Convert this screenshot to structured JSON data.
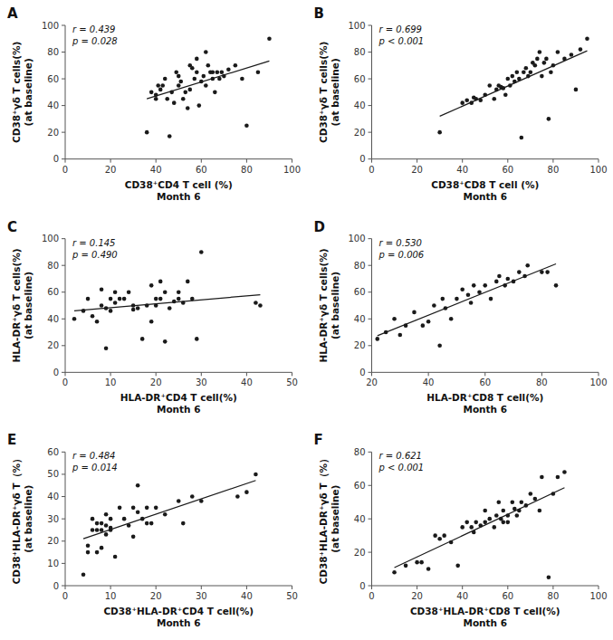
{
  "chart_data": [
    {
      "type": "scatter",
      "title": "A",
      "x_label": "CD38⁺CD4 T cell (%)\nMonth 6",
      "y_label": "CD38⁺γδ T cells(%)\n(at baseline)",
      "annotations": [
        "r = 0.439",
        "p = 0.028"
      ],
      "color": "#1a1a1a",
      "xlim": [
        0,
        100
      ],
      "ylim": [
        0,
        100
      ],
      "xticks": [
        0,
        20,
        40,
        60,
        80,
        100
      ],
      "yticks": [
        0,
        20,
        40,
        60,
        80,
        100
      ],
      "x": [
        36,
        38,
        40,
        40,
        41,
        42,
        43,
        44,
        45,
        46,
        47,
        48,
        49,
        50,
        50,
        51,
        52,
        53,
        54,
        55,
        55,
        56,
        57,
        58,
        58,
        59,
        60,
        61,
        62,
        62,
        63,
        64,
        65,
        65,
        66,
        67,
        68,
        69,
        70,
        72,
        75,
        78,
        80,
        85,
        90
      ],
      "values": [
        20,
        50,
        48,
        45,
        55,
        52,
        55,
        60,
        45,
        17,
        50,
        42,
        65,
        55,
        62,
        58,
        45,
        50,
        38,
        70,
        52,
        68,
        60,
        65,
        75,
        40,
        58,
        62,
        55,
        80,
        70,
        65,
        60,
        65,
        50,
        65,
        60,
        65,
        62,
        67,
        70,
        60,
        25,
        65,
        90
      ],
      "fit": {
        "x": [
          36,
          90
        ],
        "values": [
          45.103,
          73.321
        ]
      }
    },
    {
      "type": "scatter",
      "title": "B",
      "x_label": "CD38⁺CD8 T cell (%)\nMonth 6",
      "y_label": "CD38⁺γδ T cells(%)\n(at baseline)",
      "annotations": [
        "r = 0.699",
        "p < 0.001"
      ],
      "color": "#1a1a1a",
      "xlim": [
        0,
        100
      ],
      "ylim": [
        0,
        100
      ],
      "xticks": [
        0,
        20,
        40,
        60,
        80,
        100
      ],
      "yticks": [
        0,
        20,
        40,
        60,
        80,
        100
      ],
      "x": [
        30,
        40,
        42,
        44,
        45,
        46,
        48,
        50,
        52,
        54,
        55,
        56,
        57,
        58,
        59,
        60,
        61,
        62,
        63,
        64,
        65,
        66,
        67,
        68,
        69,
        70,
        71,
        72,
        73,
        74,
        75,
        76,
        77,
        78,
        79,
        80,
        82,
        85,
        88,
        90,
        92,
        95
      ],
      "values": [
        20,
        42,
        44,
        42,
        46,
        45,
        44,
        48,
        55,
        45,
        52,
        55,
        54,
        53,
        48,
        60,
        55,
        62,
        58,
        65,
        60,
        16,
        65,
        68,
        62,
        65,
        72,
        70,
        75,
        80,
        62,
        72,
        75,
        30,
        65,
        70,
        80,
        75,
        78,
        52,
        82,
        90
      ],
      "fit": {
        "x": [
          30,
          95
        ],
        "values": [
          32.008,
          80.941
        ]
      }
    },
    {
      "type": "scatter",
      "title": "C",
      "x_label": "HLA-DR⁺CD4 T cell(%)\nMonth 6",
      "y_label": "HLA-DR⁺γδ T cells(%)\n(at baseline)",
      "annotations": [
        "r = 0.145",
        "p = 0.490"
      ],
      "color": "#1a1a1a",
      "xlim": [
        0,
        50
      ],
      "ylim": [
        0,
        100
      ],
      "xticks": [
        0,
        10,
        20,
        30,
        40,
        50
      ],
      "yticks": [
        0,
        20,
        40,
        60,
        80,
        100
      ],
      "x": [
        2,
        4,
        5,
        6,
        7,
        8,
        8,
        9,
        9,
        10,
        10,
        11,
        11,
        12,
        13,
        14,
        15,
        15,
        16,
        17,
        18,
        19,
        19,
        20,
        20,
        21,
        21,
        22,
        22,
        23,
        24,
        25,
        25,
        26,
        27,
        28,
        29,
        30,
        42,
        43
      ],
      "values": [
        40,
        46,
        55,
        42,
        38,
        50,
        62,
        48,
        18,
        55,
        46,
        60,
        52,
        55,
        55,
        60,
        47,
        50,
        48,
        25,
        50,
        38,
        65,
        55,
        50,
        68,
        55,
        60,
        23,
        48,
        53,
        55,
        60,
        52,
        68,
        55,
        25,
        90,
        52,
        50
      ],
      "fit": {
        "x": [
          2,
          43
        ],
        "values": [
          45.983,
          58.079
        ]
      }
    },
    {
      "type": "scatter",
      "title": "D",
      "x_label": "HLA-DR⁺CD8 T cell(%)\nMonth 6",
      "y_label": "HLA-DR⁺γδ T cells(%)\n(at baseline)",
      "annotations": [
        "r = 0.530",
        "p = 0.006"
      ],
      "color": "#1a1a1a",
      "xlim": [
        20,
        100
      ],
      "ylim": [
        0,
        100
      ],
      "xticks": [
        20,
        40,
        60,
        80,
        100
      ],
      "yticks": [
        0,
        20,
        40,
        60,
        80,
        100
      ],
      "x": [
        22,
        25,
        28,
        30,
        32,
        35,
        38,
        40,
        42,
        44,
        45,
        46,
        48,
        50,
        52,
        54,
        55,
        56,
        58,
        60,
        62,
        64,
        65,
        67,
        68,
        70,
        72,
        74,
        75,
        80,
        82,
        85
      ],
      "values": [
        25,
        30,
        40,
        28,
        35,
        45,
        35,
        38,
        50,
        20,
        55,
        48,
        40,
        55,
        62,
        58,
        52,
        65,
        60,
        65,
        55,
        68,
        72,
        65,
        70,
        68,
        75,
        72,
        80,
        75,
        75,
        65
      ],
      "fit": {
        "x": [
          22,
          85
        ],
        "values": [
          27.361,
          81.124
        ]
      }
    },
    {
      "type": "scatter",
      "title": "E",
      "x_label": "CD38⁺HLA-DR⁺CD4 T cell(%)\nMonth 6",
      "y_label": "CD38⁺HLA-DR⁺γδ T（%）\n(at baseline)",
      "annotations": [
        "r = 0.484",
        "p = 0.014"
      ],
      "color": "#1a1a1a",
      "xlim": [
        0,
        50
      ],
      "ylim": [
        0,
        60
      ],
      "xticks": [
        0,
        10,
        20,
        30,
        40,
        50
      ],
      "yticks": [
        0,
        10,
        20,
        30,
        40,
        50,
        60
      ],
      "x": [
        4,
        5,
        5,
        6,
        6,
        7,
        7,
        7,
        8,
        8,
        8,
        9,
        9,
        9,
        10,
        10,
        10,
        11,
        12,
        13,
        14,
        15,
        15,
        16,
        16,
        17,
        18,
        18,
        19,
        20,
        22,
        25,
        26,
        28,
        30,
        38,
        40,
        42
      ],
      "values": [
        5,
        18,
        15,
        25,
        30,
        25,
        28,
        15,
        28,
        25,
        17,
        32,
        27,
        23,
        26,
        30,
        25,
        13,
        35,
        30,
        27,
        35,
        22,
        45,
        33,
        30,
        35,
        28,
        28,
        35,
        32,
        38,
        28,
        40,
        38,
        40,
        42,
        50
      ],
      "fit": {
        "x": [
          4,
          42
        ],
        "values": [
          21.094,
          47.23
        ]
      }
    },
    {
      "type": "scatter",
      "title": "F",
      "x_label": "CD38⁺HLA-DR⁺CD8 T cell(%)\nMonth 6",
      "y_label": "CD38⁺HLA-DR⁺γδ T（%）\n(at baseline)",
      "annotations": [
        "r = 0.621",
        "p < 0.001"
      ],
      "color": "#1a1a1a",
      "xlim": [
        0,
        100
      ],
      "ylim": [
        0,
        80
      ],
      "xticks": [
        0,
        20,
        40,
        60,
        80,
        100
      ],
      "yticks": [
        0,
        20,
        40,
        60,
        80
      ],
      "x": [
        10,
        15,
        20,
        22,
        25,
        28,
        30,
        32,
        35,
        38,
        40,
        42,
        44,
        45,
        46,
        48,
        50,
        50,
        52,
        54,
        55,
        56,
        57,
        58,
        58,
        60,
        60,
        62,
        63,
        64,
        65,
        66,
        68,
        70,
        72,
        74,
        75,
        78,
        80,
        82,
        85
      ],
      "values": [
        8,
        12,
        14,
        14,
        10,
        30,
        28,
        30,
        26,
        12,
        35,
        38,
        35,
        32,
        38,
        36,
        45,
        38,
        40,
        35,
        42,
        50,
        40,
        38,
        45,
        38,
        42,
        50,
        46,
        42,
        45,
        50,
        48,
        55,
        52,
        45,
        65,
        5,
        55,
        65,
        68
      ],
      "fit": {
        "x": [
          10,
          85
        ],
        "values": [
          10.792,
          58.625
        ]
      }
    }
  ]
}
